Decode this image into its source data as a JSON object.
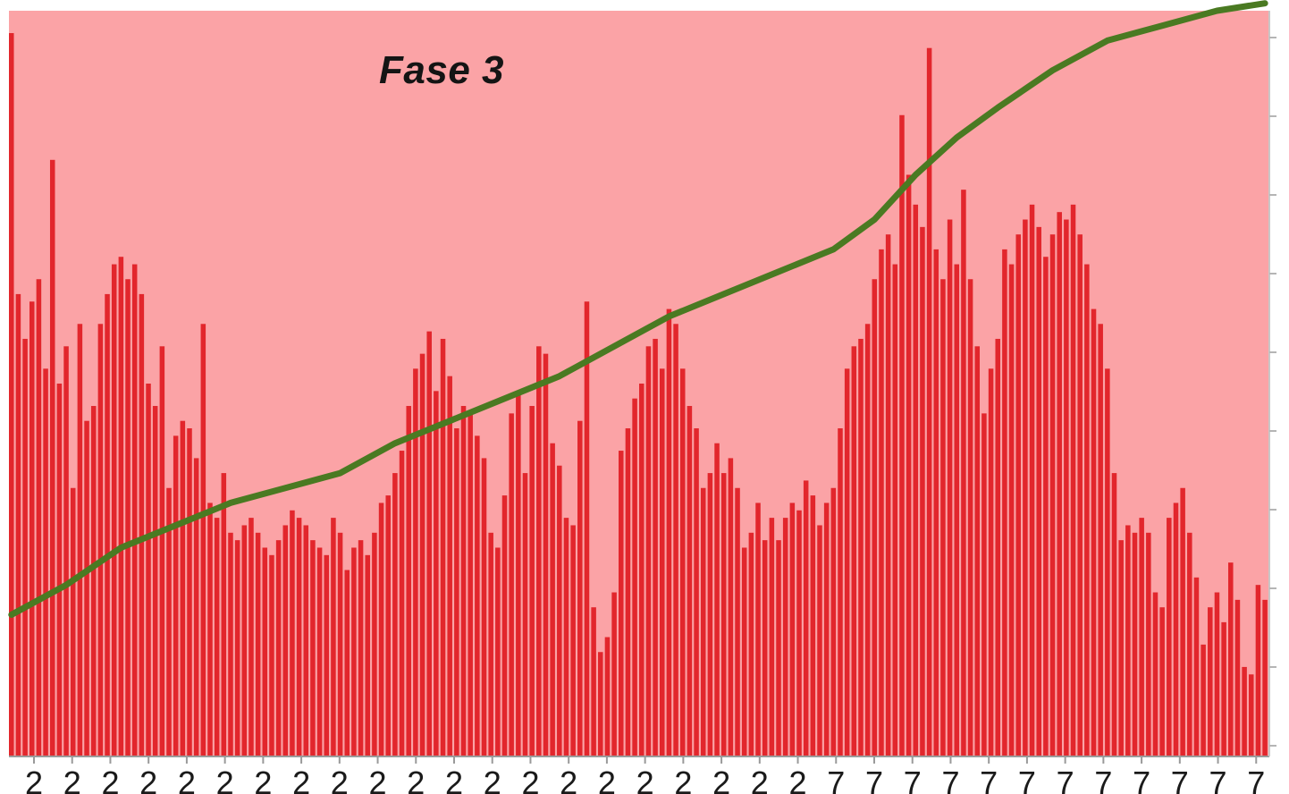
{
  "chart_data": {
    "type": "bar",
    "title": "Fase 3",
    "xlabel": "",
    "ylabel": "",
    "ylim": [
      0,
      1
    ],
    "y2lim": [
      0,
      1
    ],
    "grid": false,
    "legend": "none",
    "x_tick_labels": [
      "2",
      "2",
      "2",
      "2",
      "2",
      "2",
      "2",
      "2",
      "2",
      "2",
      "2",
      "2",
      "2",
      "2",
      "2",
      "2",
      "2",
      "2",
      "2",
      "2",
      "2",
      "7",
      "7",
      "7",
      "7",
      "7",
      "7",
      "7",
      "7",
      "7",
      "7",
      "7",
      "7"
    ],
    "colors": {
      "background": "#fba3a6",
      "bars": "#e2262c",
      "line": "#4a7a22"
    },
    "bar_values_anchor": [
      [
        0,
        0.97
      ],
      [
        1,
        0.62
      ],
      [
        2,
        0.56
      ],
      [
        3,
        0.61
      ],
      [
        4,
        0.64
      ],
      [
        5,
        0.52
      ],
      [
        6,
        0.8
      ],
      [
        7,
        0.5
      ],
      [
        8,
        0.55
      ],
      [
        9,
        0.36
      ],
      [
        10,
        0.58
      ],
      [
        11,
        0.45
      ],
      [
        12,
        0.47
      ],
      [
        13,
        0.58
      ],
      [
        14,
        0.62
      ],
      [
        15,
        0.66
      ],
      [
        16,
        0.67
      ],
      [
        17,
        0.64
      ],
      [
        18,
        0.66
      ],
      [
        19,
        0.62
      ],
      [
        20,
        0.5
      ],
      [
        21,
        0.47
      ],
      [
        22,
        0.55
      ],
      [
        23,
        0.36
      ],
      [
        24,
        0.43
      ],
      [
        25,
        0.45
      ],
      [
        26,
        0.44
      ],
      [
        27,
        0.4
      ],
      [
        28,
        0.58
      ],
      [
        29,
        0.34
      ],
      [
        30,
        0.32
      ],
      [
        31,
        0.38
      ],
      [
        32,
        0.3
      ],
      [
        33,
        0.29
      ],
      [
        34,
        0.31
      ],
      [
        35,
        0.32
      ],
      [
        36,
        0.3
      ],
      [
        37,
        0.28
      ],
      [
        38,
        0.27
      ],
      [
        39,
        0.29
      ],
      [
        40,
        0.31
      ],
      [
        41,
        0.33
      ],
      [
        42,
        0.32
      ],
      [
        43,
        0.31
      ],
      [
        44,
        0.29
      ],
      [
        45,
        0.28
      ],
      [
        46,
        0.27
      ],
      [
        47,
        0.32
      ],
      [
        48,
        0.3
      ],
      [
        49,
        0.25
      ],
      [
        50,
        0.28
      ],
      [
        51,
        0.29
      ],
      [
        52,
        0.27
      ],
      [
        53,
        0.3
      ],
      [
        54,
        0.34
      ],
      [
        55,
        0.35
      ],
      [
        56,
        0.38
      ],
      [
        57,
        0.41
      ],
      [
        58,
        0.47
      ],
      [
        59,
        0.52
      ],
      [
        60,
        0.54
      ],
      [
        61,
        0.57
      ],
      [
        62,
        0.49
      ],
      [
        63,
        0.56
      ],
      [
        64,
        0.51
      ],
      [
        65,
        0.44
      ],
      [
        66,
        0.47
      ],
      [
        67,
        0.46
      ],
      [
        68,
        0.43
      ],
      [
        69,
        0.4
      ],
      [
        70,
        0.3
      ],
      [
        71,
        0.28
      ],
      [
        72,
        0.35
      ],
      [
        73,
        0.46
      ],
      [
        74,
        0.49
      ],
      [
        75,
        0.38
      ],
      [
        76,
        0.47
      ],
      [
        77,
        0.55
      ],
      [
        78,
        0.54
      ],
      [
        79,
        0.42
      ],
      [
        80,
        0.39
      ],
      [
        81,
        0.32
      ],
      [
        82,
        0.31
      ],
      [
        83,
        0.45
      ],
      [
        84,
        0.61
      ],
      [
        85,
        0.2
      ],
      [
        86,
        0.14
      ],
      [
        87,
        0.16
      ],
      [
        88,
        0.22
      ],
      [
        89,
        0.41
      ],
      [
        90,
        0.44
      ],
      [
        91,
        0.48
      ],
      [
        92,
        0.5
      ],
      [
        93,
        0.55
      ],
      [
        94,
        0.56
      ],
      [
        95,
        0.52
      ],
      [
        96,
        0.6
      ],
      [
        97,
        0.58
      ],
      [
        98,
        0.52
      ],
      [
        99,
        0.47
      ],
      [
        100,
        0.44
      ],
      [
        101,
        0.36
      ],
      [
        102,
        0.38
      ],
      [
        103,
        0.42
      ],
      [
        104,
        0.38
      ],
      [
        105,
        0.4
      ],
      [
        106,
        0.36
      ],
      [
        107,
        0.28
      ],
      [
        108,
        0.3
      ],
      [
        109,
        0.34
      ],
      [
        110,
        0.29
      ],
      [
        111,
        0.32
      ],
      [
        112,
        0.29
      ],
      [
        113,
        0.32
      ],
      [
        114,
        0.34
      ],
      [
        115,
        0.33
      ],
      [
        116,
        0.37
      ],
      [
        117,
        0.35
      ],
      [
        118,
        0.31
      ],
      [
        119,
        0.34
      ],
      [
        120,
        0.36
      ],
      [
        121,
        0.44
      ],
      [
        122,
        0.52
      ],
      [
        123,
        0.55
      ],
      [
        124,
        0.56
      ],
      [
        125,
        0.58
      ],
      [
        126,
        0.64
      ],
      [
        127,
        0.68
      ],
      [
        128,
        0.7
      ],
      [
        129,
        0.66
      ],
      [
        130,
        0.86
      ],
      [
        131,
        0.78
      ],
      [
        132,
        0.74
      ],
      [
        133,
        0.71
      ],
      [
        134,
        0.95
      ],
      [
        135,
        0.68
      ],
      [
        136,
        0.64
      ],
      [
        137,
        0.72
      ],
      [
        138,
        0.66
      ],
      [
        139,
        0.76
      ],
      [
        140,
        0.64
      ],
      [
        141,
        0.55
      ],
      [
        142,
        0.46
      ],
      [
        143,
        0.52
      ],
      [
        144,
        0.56
      ],
      [
        145,
        0.68
      ],
      [
        146,
        0.66
      ],
      [
        147,
        0.7
      ],
      [
        148,
        0.72
      ],
      [
        149,
        0.74
      ],
      [
        150,
        0.71
      ],
      [
        151,
        0.67
      ],
      [
        152,
        0.7
      ],
      [
        153,
        0.73
      ],
      [
        154,
        0.72
      ],
      [
        155,
        0.74
      ],
      [
        156,
        0.7
      ],
      [
        157,
        0.66
      ],
      [
        158,
        0.6
      ],
      [
        159,
        0.58
      ],
      [
        160,
        0.52
      ],
      [
        161,
        0.38
      ],
      [
        162,
        0.29
      ],
      [
        163,
        0.31
      ],
      [
        164,
        0.3
      ],
      [
        165,
        0.32
      ],
      [
        166,
        0.3
      ],
      [
        167,
        0.22
      ],
      [
        168,
        0.2
      ],
      [
        169,
        0.32
      ],
      [
        170,
        0.34
      ],
      [
        171,
        0.36
      ],
      [
        172,
        0.3
      ],
      [
        173,
        0.24
      ],
      [
        174,
        0.15
      ],
      [
        175,
        0.2
      ],
      [
        176,
        0.22
      ],
      [
        177,
        0.18
      ],
      [
        178,
        0.26
      ],
      [
        179,
        0.21
      ],
      [
        180,
        0.12
      ],
      [
        181,
        0.11
      ],
      [
        182,
        0.23
      ],
      [
        183,
        0.21
      ]
    ],
    "line_values_anchor": [
      [
        0,
        0.19
      ],
      [
        8,
        0.23
      ],
      [
        16,
        0.28
      ],
      [
        24,
        0.31
      ],
      [
        32,
        0.34
      ],
      [
        40,
        0.36
      ],
      [
        48,
        0.38
      ],
      [
        56,
        0.42
      ],
      [
        64,
        0.45
      ],
      [
        72,
        0.48
      ],
      [
        80,
        0.51
      ],
      [
        88,
        0.55
      ],
      [
        96,
        0.59
      ],
      [
        104,
        0.62
      ],
      [
        112,
        0.65
      ],
      [
        120,
        0.68
      ],
      [
        126,
        0.72
      ],
      [
        132,
        0.78
      ],
      [
        138,
        0.83
      ],
      [
        144,
        0.87
      ],
      [
        152,
        0.92
      ],
      [
        160,
        0.96
      ],
      [
        168,
        0.98
      ],
      [
        176,
        1.0
      ],
      [
        183,
        1.01
      ]
    ]
  }
}
